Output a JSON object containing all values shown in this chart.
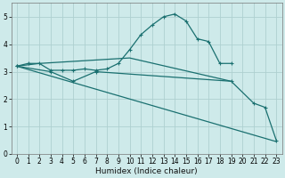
{
  "xlabel": "Humidex (Indice chaleur)",
  "bg_color": "#ceeaea",
  "line_color": "#1a7070",
  "grid_color": "#aed0d0",
  "xlim": [
    -0.5,
    23.5
  ],
  "ylim": [
    0,
    5.5
  ],
  "xticks": [
    0,
    1,
    2,
    3,
    4,
    5,
    6,
    7,
    8,
    9,
    10,
    11,
    12,
    13,
    14,
    15,
    16,
    17,
    18,
    19,
    20,
    21,
    22,
    23
  ],
  "yticks": [
    0,
    1,
    2,
    3,
    4,
    5
  ],
  "series": [
    {
      "x": [
        0,
        1,
        2,
        3,
        4,
        5,
        6,
        7,
        8,
        9,
        10,
        11,
        12,
        13,
        14,
        15,
        16,
        17,
        18,
        19,
        20,
        21,
        22,
        23
      ],
      "y": [
        3.2,
        3.3,
        3.3,
        3.05,
        3.05,
        3.05,
        3.1,
        3.05,
        3.1,
        3.3,
        3.8,
        4.35,
        4.7,
        5.0,
        5.1,
        4.85,
        4.2,
        4.1,
        3.3,
        3.3,
        null,
        null,
        null,
        null
      ]
    },
    {
      "x": [
        0,
        2,
        10,
        19
      ],
      "y": [
        3.2,
        3.3,
        3.5,
        2.65
      ]
    },
    {
      "x": [
        0,
        23
      ],
      "y": [
        3.2,
        0.45
      ]
    },
    {
      "x": [
        0,
        3,
        5,
        7,
        19,
        21,
        22,
        23
      ],
      "y": [
        3.2,
        3.0,
        2.65,
        3.0,
        2.65,
        1.85,
        1.7,
        0.5
      ]
    }
  ]
}
